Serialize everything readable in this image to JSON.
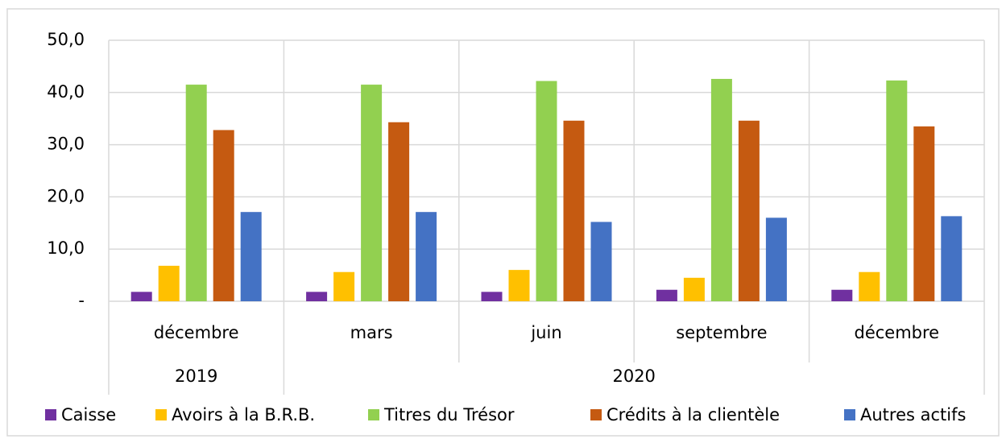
{
  "chart_data": {
    "type": "bar",
    "categories": [
      "décembre",
      "mars",
      "juin",
      "septembre",
      "décembre"
    ],
    "groups": [
      {
        "label": "2019",
        "count": 1
      },
      {
        "label": "2020",
        "count": 4
      }
    ],
    "series": [
      {
        "name": "Caisse",
        "color": "#7030a0",
        "values": [
          1.8,
          1.8,
          1.8,
          2.2,
          2.2
        ]
      },
      {
        "name": "Avoirs à la B.R.B.",
        "color": "#ffc000",
        "values": [
          6.8,
          5.6,
          6.0,
          4.5,
          5.6
        ]
      },
      {
        "name": "Titres du Trésor",
        "color": "#92d050",
        "values": [
          41.5,
          41.5,
          42.2,
          42.6,
          42.3
        ]
      },
      {
        "name": "Crédits à la clientèle",
        "color": "#c55a11",
        "values": [
          32.8,
          34.3,
          34.6,
          34.6,
          33.5
        ]
      },
      {
        "name": "Autres actifs",
        "color": "#4472c4",
        "values": [
          17.1,
          17.1,
          15.2,
          16.0,
          16.3
        ]
      }
    ],
    "ylim": [
      0,
      50
    ],
    "yticks": [
      {
        "value": 0,
        "label": "-"
      },
      {
        "value": 10,
        "label": "10,0"
      },
      {
        "value": 20,
        "label": "20,0"
      },
      {
        "value": 30,
        "label": "30,0"
      },
      {
        "value": 40,
        "label": "40,0"
      },
      {
        "value": 50,
        "label": "50,0"
      }
    ],
    "grid": true
  }
}
